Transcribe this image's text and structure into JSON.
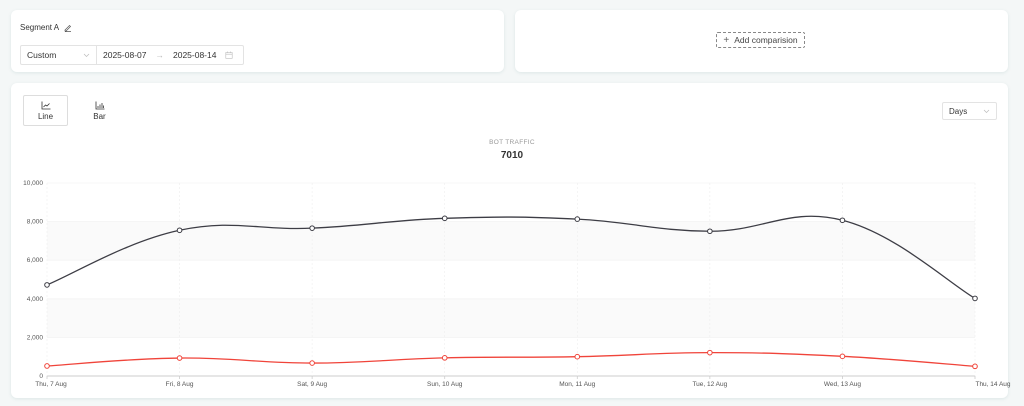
{
  "segment": {
    "label": "Segment A",
    "edit_icon": "pencil-icon"
  },
  "date_picker": {
    "preset": "Custom",
    "start": "2025-08-07",
    "end": "2025-08-14",
    "arrow": "→"
  },
  "comparison": {
    "add_label": "Add comparision",
    "icon": "+"
  },
  "chart_types": [
    {
      "label": "Line",
      "active": true
    },
    {
      "label": "Bar",
      "active": false
    }
  ],
  "granularity": "Days",
  "metric": {
    "title": "BOT TRAFFIC",
    "value": "7010"
  },
  "chart_data": {
    "type": "line",
    "title": "BOT TRAFFIC",
    "categories": [
      "Thu, 7 Aug",
      "Fri, 8 Aug",
      "Sat, 9 Aug",
      "Sun, 10 Aug",
      "Mon, 11 Aug",
      "Tue, 12 Aug",
      "Wed, 13 Aug",
      "Thu, 14 Aug"
    ],
    "yticks": [
      "0",
      "2,000",
      "4,000",
      "6,000",
      "8,000",
      "10,000"
    ],
    "ylim": [
      0,
      10000
    ],
    "grid": true,
    "series": [
      {
        "color": "#3d3d45",
        "values": [
          4720,
          7550,
          7660,
          8170,
          8130,
          7500,
          8070,
          4020
        ]
      },
      {
        "color": "#f0443a",
        "values": [
          520,
          930,
          670,
          940,
          1000,
          1210,
          1020,
          500
        ]
      }
    ]
  }
}
